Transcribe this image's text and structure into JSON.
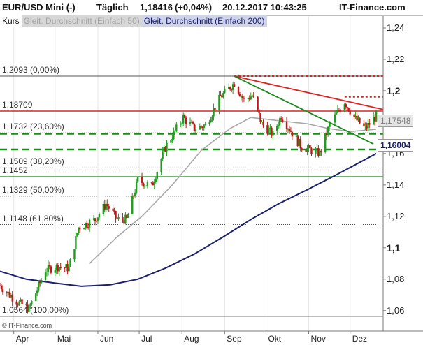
{
  "header": {
    "instrument": "EUR/USD Mini (-)",
    "interval": "Täglich",
    "price": "1,18416",
    "change": "(+0,04%)",
    "datetime": "20.12.2017 10:43:25",
    "brand": "IT-Finance.com"
  },
  "legend": {
    "kurs": "Kurs",
    "ma50": "Gleit. Durchschnitt (Einfach 50)",
    "ma200": "Gleit. Durchschnitt (Einfach 200)"
  },
  "copyright": "© IT-Finance.com",
  "price_tags": {
    "ma50": "1,17548",
    "ma200": "1,16004"
  },
  "colors": {
    "candle_up": "#1f9d1f",
    "candle_down": "#c01818",
    "ma50": "#a8a8a8",
    "ma200": "#1a1f6e",
    "resistance": "#e02020",
    "support": "#1a8a1a"
  },
  "chart_data": {
    "type": "candlestick",
    "yaxis": {
      "ticks": [
        "1,24",
        "1,22",
        "1,2",
        "1,18",
        "1,16",
        "1,14",
        "1,12",
        "1,1",
        "1,08",
        "1,06"
      ],
      "tick_values": [
        1.24,
        1.22,
        1.2,
        1.18,
        1.16,
        1.14,
        1.12,
        1.1,
        1.08,
        1.06
      ],
      "bold": [
        "1,2",
        "1,1"
      ],
      "ylim": [
        1.047,
        1.248
      ]
    },
    "xaxis": {
      "labels": [
        "Apr",
        "Mai",
        "Jun",
        "Jul",
        "Aug",
        "Sep",
        "Okt",
        "Nov",
        "Dez"
      ],
      "ticks": [
        "2017-04-01",
        "2017-05-01",
        "2017-06-01",
        "2017-07-01",
        "2017-08-01",
        "2017-09-01",
        "2017-10-01",
        "2017-11-01",
        "2017-12-01"
      ],
      "xlim": [
        "2017-03-22",
        "2017-12-25"
      ]
    },
    "fibonacci": [
      {
        "label": "1,2093 (0,00%)",
        "value": 1.2093
      },
      {
        "label": "1,1732 (23,60%)",
        "value": 1.1732
      },
      {
        "label": "1,1509 (38,20%)",
        "value": 1.1509
      },
      {
        "label": "1,1329 (50,00%)",
        "value": 1.1329
      },
      {
        "label": "1,1148 (61,80%)",
        "value": 1.1148
      },
      {
        "label": "1,0564 (100,00%)",
        "value": 1.0564
      }
    ],
    "levels": [
      {
        "label": "1,18709",
        "value": 1.18709,
        "style": "resistance"
      },
      {
        "label": "1,1452",
        "value": 1.1452,
        "style": "support"
      }
    ],
    "dashed_levels": [
      {
        "value": 1.2093,
        "from": "2017-09-08",
        "style": "resistance"
      },
      {
        "value": 1.1961,
        "from": "2017-11-27",
        "style": "resistance"
      },
      {
        "value": 1.1726,
        "from": "2017-03-22",
        "style": "support"
      },
      {
        "value": 1.1626,
        "from": "2017-03-22",
        "style": "support"
      }
    ],
    "trendlines": [
      {
        "from": [
          "2017-09-08",
          1.2093
        ],
        "to": [
          "2017-12-25",
          1.1881
        ],
        "style": "resistance"
      },
      {
        "from": [
          "2017-09-08",
          1.2093
        ],
        "to": [
          "2017-12-18",
          1.1661
        ],
        "style": "support"
      }
    ],
    "anchors": [
      [
        "2017-03-22",
        1.076
      ],
      [
        "2017-04-03",
        1.066
      ],
      [
        "2017-04-12",
        1.061
      ],
      [
        "2017-04-24",
        1.086
      ],
      [
        "2017-05-03",
        1.088
      ],
      [
        "2017-05-11",
        1.087
      ],
      [
        "2017-05-18",
        1.113
      ],
      [
        "2017-05-30",
        1.118
      ],
      [
        "2017-06-07",
        1.128
      ],
      [
        "2017-06-15",
        1.118
      ],
      [
        "2017-06-22",
        1.118
      ],
      [
        "2017-06-30",
        1.143
      ],
      [
        "2017-07-10",
        1.139
      ],
      [
        "2017-07-20",
        1.164
      ],
      [
        "2017-08-02",
        1.183
      ],
      [
        "2017-08-10",
        1.176
      ],
      [
        "2017-08-18",
        1.178
      ],
      [
        "2017-08-29",
        1.196
      ],
      [
        "2017-09-08",
        1.205
      ],
      [
        "2017-09-15",
        1.194
      ],
      [
        "2017-09-21",
        1.197
      ],
      [
        "2017-09-28",
        1.179
      ],
      [
        "2017-10-06",
        1.172
      ],
      [
        "2017-10-12",
        1.184
      ],
      [
        "2017-10-26",
        1.165
      ],
      [
        "2017-11-03",
        1.162
      ],
      [
        "2017-11-09",
        1.16
      ],
      [
        "2017-11-16",
        1.178
      ],
      [
        "2017-11-27",
        1.193
      ],
      [
        "2017-12-05",
        1.182
      ],
      [
        "2017-12-12",
        1.176
      ],
      [
        "2017-12-20",
        1.184
      ]
    ],
    "ma50": [
      [
        "2017-05-26",
        1.09
      ],
      [
        "2017-06-15",
        1.107
      ],
      [
        "2017-07-03",
        1.12
      ],
      [
        "2017-07-25",
        1.14
      ],
      [
        "2017-08-15",
        1.162
      ],
      [
        "2017-09-05",
        1.176
      ],
      [
        "2017-09-20",
        1.183
      ],
      [
        "2017-10-10",
        1.181
      ],
      [
        "2017-10-31",
        1.179
      ],
      [
        "2017-11-15",
        1.176
      ],
      [
        "2017-12-01",
        1.174
      ],
      [
        "2017-12-20",
        1.1755
      ]
    ],
    "ma200": [
      [
        "2017-03-22",
        1.085
      ],
      [
        "2017-04-10",
        1.08
      ],
      [
        "2017-05-01",
        1.0775
      ],
      [
        "2017-05-20",
        1.0755
      ],
      [
        "2017-06-10",
        1.0765
      ],
      [
        "2017-06-30",
        1.08
      ],
      [
        "2017-07-20",
        1.087
      ],
      [
        "2017-08-10",
        1.096
      ],
      [
        "2017-08-31",
        1.107
      ],
      [
        "2017-09-20",
        1.118
      ],
      [
        "2017-10-10",
        1.128
      ],
      [
        "2017-10-31",
        1.137
      ],
      [
        "2017-11-20",
        1.146
      ],
      [
        "2017-12-05",
        1.153
      ],
      [
        "2017-12-20",
        1.16
      ]
    ]
  }
}
